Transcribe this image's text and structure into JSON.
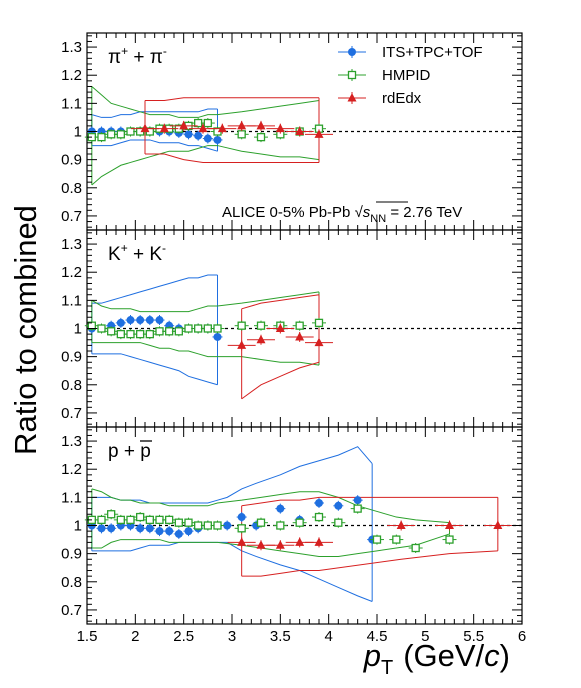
{
  "chart_data": {
    "type": "scatter",
    "x_axis": {
      "label_parts": [
        "p",
        "T",
        "(GeV/",
        "c",
        ")"
      ],
      "range": [
        1.5,
        6
      ],
      "ticks": [
        "1.5",
        "2",
        "2.5",
        "3",
        "3.5",
        "4",
        "4.5",
        "5",
        "5.5",
        "6"
      ]
    },
    "y_axis": {
      "label": "Ratio to combined",
      "ticks": [
        "0.7",
        "0.8",
        "0.9",
        "1",
        "1.1",
        "1.2",
        "1.3"
      ],
      "range": [
        0.65,
        1.35
      ],
      "reference_line": 1.0
    },
    "info_text": {
      "prefix": "ALICE 0-5% Pb-Pb ",
      "sqrt": "√",
      "s": "s",
      "sub": "NN",
      "suffix": " = 2.76 TeV"
    },
    "legend": [
      {
        "name": "ITS+TPC+TOF",
        "color": "#1f6fe0",
        "marker": "circle"
      },
      {
        "name": "HMPID",
        "color": "#2ca02c",
        "marker": "open-square"
      },
      {
        "name": "rdEdx",
        "color": "#d62020",
        "marker": "triangle"
      }
    ],
    "panels": [
      {
        "label_html": [
          "π",
          "+",
          " + π",
          "-"
        ],
        "series": [
          {
            "name": "ITS+TPC+TOF",
            "color": "#1f6fe0",
            "marker": "circle",
            "x": [
              1.55,
              1.65,
              1.75,
              1.85,
              1.95,
              2.05,
              2.15,
              2.25,
              2.35,
              2.45,
              2.55,
              2.65,
              2.75,
              2.85
            ],
            "y": [
              1.0,
              1.0,
              1.0,
              1.0,
              1.0,
              1.0,
              1.0,
              1.0,
              1.0,
              0.995,
              0.99,
              0.985,
              0.975,
              0.97
            ],
            "band_upper": [
              1.06,
              1.05,
              1.05,
              1.06,
              1.06,
              1.07,
              1.07,
              1.07,
              1.07,
              1.07,
              1.07,
              1.07,
              1.08,
              1.08
            ],
            "band_lower": [
              0.95,
              0.95,
              0.95,
              0.96,
              0.97,
              0.97,
              0.97,
              0.96,
              0.96,
              0.96,
              0.95,
              0.95,
              0.94,
              0.93
            ]
          },
          {
            "name": "HMPID",
            "color": "#2ca02c",
            "marker": "open-square",
            "x": [
              1.55,
              1.65,
              1.75,
              1.85,
              1.95,
              2.05,
              2.15,
              2.25,
              2.35,
              2.45,
              2.55,
              2.65,
              2.75,
              2.85,
              3.1,
              3.3,
              3.5,
              3.7,
              3.9
            ],
            "y": [
              0.98,
              0.98,
              0.99,
              0.99,
              1.0,
              1.0,
              1.0,
              1.01,
              1.01,
              1.01,
              1.02,
              1.03,
              1.03,
              1.0,
              0.99,
              0.98,
              0.99,
              1.0,
              1.01
            ],
            "band_upper": [
              1.16,
              1.13,
              1.1,
              1.09,
              1.08,
              1.07,
              1.06,
              1.06,
              1.06,
              1.05,
              1.05,
              1.05,
              1.06,
              1.06,
              1.07,
              1.08,
              1.09,
              1.1,
              1.11
            ],
            "band_lower": [
              0.81,
              0.84,
              0.86,
              0.88,
              0.89,
              0.9,
              0.91,
              0.92,
              0.93,
              0.93,
              0.93,
              0.94,
              0.95,
              0.95,
              0.93,
              0.92,
              0.91,
              0.91,
              0.9
            ]
          },
          {
            "name": "rdEdx",
            "color": "#d62020",
            "marker": "triangle",
            "x": [
              2.1,
              2.3,
              2.5,
              2.7,
              2.9,
              3.1,
              3.3,
              3.5,
              3.7,
              3.9
            ],
            "y": [
              1.01,
              1.01,
              1.02,
              1.01,
              1.01,
              1.02,
              1.02,
              1.01,
              1.0,
              0.99
            ],
            "band_upper": [
              1.11,
              1.11,
              1.12,
              1.12,
              1.12,
              1.12,
              1.12,
              1.12,
              1.12,
              1.12
            ],
            "band_lower": [
              0.92,
              0.92,
              0.9,
              0.89,
              0.89,
              0.89,
              0.89,
              0.89,
              0.89,
              0.89
            ]
          }
        ]
      },
      {
        "label_html": [
          "K",
          "+",
          " + K",
          "-"
        ],
        "series": [
          {
            "name": "ITS+TPC+TOF",
            "color": "#1f6fe0",
            "marker": "circle",
            "x": [
              1.55,
              1.65,
              1.75,
              1.85,
              1.95,
              2.05,
              2.15,
              2.25,
              2.35,
              2.45,
              2.55,
              2.65,
              2.75,
              2.85
            ],
            "y": [
              1.0,
              1.0,
              1.01,
              1.02,
              1.03,
              1.03,
              1.03,
              1.03,
              1.01,
              1.0,
              1.0,
              1.0,
              1.0,
              0.97
            ],
            "band_upper": [
              1.09,
              1.09,
              1.1,
              1.11,
              1.12,
              1.13,
              1.14,
              1.15,
              1.16,
              1.17,
              1.18,
              1.18,
              1.19,
              1.19
            ],
            "band_lower": [
              0.91,
              0.91,
              0.91,
              0.91,
              0.9,
              0.89,
              0.88,
              0.87,
              0.86,
              0.85,
              0.83,
              0.82,
              0.81,
              0.8
            ]
          },
          {
            "name": "HMPID",
            "color": "#2ca02c",
            "marker": "open-square",
            "x": [
              1.55,
              1.65,
              1.75,
              1.85,
              1.95,
              2.05,
              2.15,
              2.25,
              2.35,
              2.45,
              2.55,
              2.65,
              2.75,
              2.85,
              3.1,
              3.3,
              3.5,
              3.7,
              3.9
            ],
            "y": [
              1.01,
              1.0,
              0.99,
              0.98,
              0.98,
              0.98,
              0.98,
              0.99,
              0.99,
              0.99,
              1.0,
              1.0,
              1.0,
              1.0,
              1.01,
              1.01,
              1.01,
              1.01,
              1.02
            ],
            "band_upper": [
              1.1,
              1.08,
              1.07,
              1.07,
              1.07,
              1.06,
              1.06,
              1.06,
              1.06,
              1.06,
              1.06,
              1.07,
              1.08,
              1.08,
              1.09,
              1.1,
              1.11,
              1.12,
              1.13
            ],
            "band_lower": [
              0.95,
              0.95,
              0.95,
              0.95,
              0.95,
              0.95,
              0.94,
              0.93,
              0.93,
              0.92,
              0.92,
              0.91,
              0.9,
              0.9,
              0.9,
              0.89,
              0.88,
              0.88,
              0.87
            ]
          },
          {
            "name": "rdEdx",
            "color": "#d62020",
            "marker": "triangle",
            "x": [
              3.1,
              3.3,
              3.5,
              3.7,
              3.9
            ],
            "y": [
              0.94,
              0.96,
              1.0,
              0.97,
              0.95
            ],
            "band_upper": [
              1.07,
              1.09,
              1.1,
              1.11,
              1.12
            ],
            "band_lower": [
              0.75,
              0.8,
              0.83,
              0.86,
              0.88
            ]
          }
        ]
      },
      {
        "label_html": [
          "p + ",
          "p",
          "",
          ""
        ],
        "label_overline": true,
        "series": [
          {
            "name": "ITS+TPC+TOF",
            "color": "#1f6fe0",
            "marker": "circle",
            "x": [
              1.55,
              1.65,
              1.75,
              1.85,
              1.95,
              2.05,
              2.15,
              2.25,
              2.35,
              2.45,
              2.55,
              2.65,
              2.75,
              2.85,
              2.95,
              3.1,
              3.25,
              3.5,
              3.7,
              3.9,
              4.1,
              4.3,
              4.45
            ],
            "y": [
              1.0,
              0.99,
              0.99,
              1.0,
              1.0,
              0.99,
              0.99,
              0.98,
              0.98,
              0.97,
              0.98,
              0.99,
              1.0,
              1.0,
              1.0,
              1.03,
              1.0,
              1.06,
              1.02,
              1.08,
              1.07,
              1.09,
              0.95
            ],
            "band_upper": [
              1.1,
              1.1,
              1.1,
              1.09,
              1.09,
              1.09,
              1.08,
              1.08,
              1.08,
              1.08,
              1.08,
              1.08,
              1.08,
              1.09,
              1.1,
              1.13,
              1.15,
              1.18,
              1.21,
              1.23,
              1.25,
              1.28,
              1.22
            ],
            "band_lower": [
              0.91,
              0.91,
              0.91,
              0.91,
              0.91,
              0.92,
              0.93,
              0.93,
              0.93,
              0.94,
              0.94,
              0.94,
              0.94,
              0.94,
              0.94,
              0.91,
              0.89,
              0.86,
              0.84,
              0.81,
              0.78,
              0.75,
              0.73
            ]
          },
          {
            "name": "HMPID",
            "color": "#2ca02c",
            "marker": "open-square",
            "x": [
              1.55,
              1.65,
              1.75,
              1.85,
              1.95,
              2.05,
              2.15,
              2.25,
              2.35,
              2.45,
              2.55,
              2.65,
              2.75,
              2.85,
              3.1,
              3.3,
              3.5,
              3.7,
              3.9,
              4.1,
              4.3,
              4.5,
              4.7,
              4.9,
              5.25
            ],
            "y": [
              1.02,
              1.02,
              1.04,
              1.02,
              1.02,
              1.03,
              1.02,
              1.02,
              1.02,
              1.01,
              1.01,
              1.0,
              1.0,
              1.0,
              0.99,
              1.01,
              1.0,
              1.01,
              1.03,
              1.01,
              1.06,
              0.95,
              0.95,
              0.92,
              0.95
            ],
            "band_upper": [
              1.13,
              1.12,
              1.1,
              1.09,
              1.09,
              1.08,
              1.08,
              1.08,
              1.07,
              1.07,
              1.07,
              1.07,
              1.07,
              1.08,
              1.09,
              1.1,
              1.11,
              1.12,
              1.12,
              1.1,
              1.07,
              1.05,
              1.03,
              1.02,
              1.01
            ],
            "band_lower": [
              0.92,
              0.92,
              0.94,
              0.95,
              0.95,
              0.95,
              0.95,
              0.95,
              0.94,
              0.94,
              0.94,
              0.94,
              0.94,
              0.94,
              0.93,
              0.92,
              0.91,
              0.9,
              0.89,
              0.89,
              0.9,
              0.91,
              0.92,
              0.93,
              0.97
            ]
          },
          {
            "name": "rdEdx",
            "color": "#d62020",
            "marker": "triangle",
            "x": [
              3.1,
              3.3,
              3.5,
              3.7,
              3.9,
              4.75,
              5.25,
              5.75
            ],
            "y": [
              0.94,
              0.93,
              0.93,
              0.94,
              0.94,
              1.0,
              1.0,
              1.0
            ],
            "band_upper": [
              1.07,
              1.08,
              1.09,
              1.09,
              1.1,
              1.1,
              1.1,
              1.1
            ],
            "band_lower": [
              0.82,
              0.82,
              0.83,
              0.84,
              0.84,
              0.88,
              0.9,
              0.91
            ]
          }
        ]
      }
    ]
  }
}
